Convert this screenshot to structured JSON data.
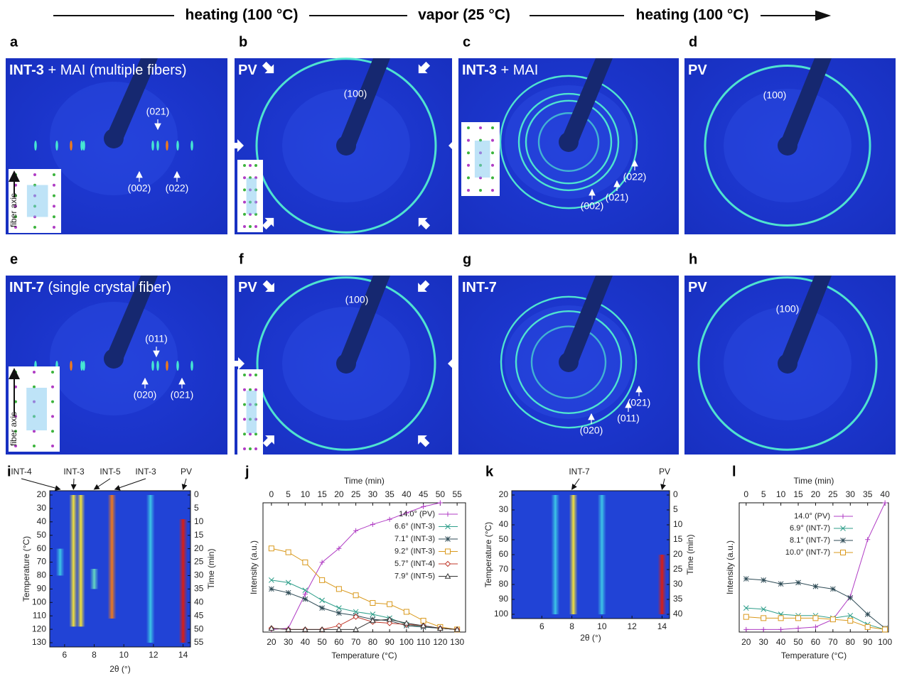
{
  "header": {
    "steps": [
      "heating (100 °C)",
      "vapor (25 °C)",
      "heating (100 °C)"
    ]
  },
  "panels": [
    {
      "letter": "a",
      "title": "INT-3",
      "subtitle": "+ MAI (multiple fibers)",
      "labels": [
        "(021)",
        "(002)",
        "(022)"
      ],
      "inset_label": "fiber axis"
    },
    {
      "letter": "b",
      "title": "PV",
      "labels": [
        "(100)"
      ]
    },
    {
      "letter": "c",
      "title": "INT-3",
      "subtitle": "+ MAI",
      "labels": [
        "(002)",
        "(021)",
        "(022)"
      ]
    },
    {
      "letter": "d",
      "title": "PV",
      "labels": [
        "(100)"
      ]
    },
    {
      "letter": "e",
      "title": "INT-7",
      "subtitle": "(single crystal fiber)",
      "labels": [
        "(011)",
        "(020)",
        "(021)"
      ],
      "inset_label": "fiber axis"
    },
    {
      "letter": "f",
      "title": "PV",
      "labels": [
        "(100)"
      ]
    },
    {
      "letter": "g",
      "title": "INT-7",
      "labels": [
        "(020)",
        "(011)",
        "(021)"
      ]
    },
    {
      "letter": "h",
      "title": "PV",
      "labels": [
        "(100)"
      ]
    }
  ],
  "chart_data": [
    {
      "type": "heatmap",
      "letter": "i",
      "xlabel": "2θ (°)",
      "ylabel": "Temperature (°C)",
      "y2label": "Time (min)",
      "peak_labels": [
        "INT-4",
        "INT-3",
        "INT-5",
        "INT-3",
        "PV"
      ],
      "xlim": [
        5,
        14.5
      ],
      "xticks": [
        6,
        8,
        10,
        12,
        14
      ],
      "ylim": [
        20,
        130
      ],
      "yticks": [
        20,
        30,
        40,
        50,
        60,
        70,
        80,
        90,
        100,
        110,
        120,
        130
      ],
      "y_inverted": true,
      "y2lim": [
        0,
        55
      ],
      "y2ticks": [
        0,
        5,
        10,
        15,
        20,
        25,
        30,
        35,
        40,
        45,
        50,
        55
      ],
      "background": "#2143d6",
      "bands": [
        {
          "center": 6.6,
          "from": 20,
          "to": 118,
          "color": "#f2e23a"
        },
        {
          "center": 7.1,
          "from": 20,
          "to": 118,
          "color": "#f2e23a"
        },
        {
          "center": 9.2,
          "from": 20,
          "to": 112,
          "color": "#f07a1c"
        },
        {
          "center": 11.8,
          "from": 20,
          "to": 130,
          "color": "#3cc6e6"
        },
        {
          "center": 14.0,
          "from": 38,
          "to": 130,
          "color": "#e01c0c"
        },
        {
          "center": 5.7,
          "from": 60,
          "to": 80,
          "color": "#3cc6e6"
        },
        {
          "center": 8.0,
          "from": 75,
          "to": 90,
          "color": "#66d8c0"
        }
      ]
    },
    {
      "type": "line",
      "letter": "j",
      "xlabel": "Temperature (°C)",
      "ylabel": "Intensity (a.u.)",
      "x2label": "Time (min)",
      "x": [
        20,
        30,
        40,
        50,
        60,
        70,
        80,
        90,
        100,
        110,
        120,
        130
      ],
      "xlim": [
        15,
        135
      ],
      "xticks": [
        20,
        30,
        40,
        50,
        60,
        70,
        80,
        90,
        100,
        110,
        120,
        130
      ],
      "x2lim": [
        -2.5,
        57.5
      ],
      "x2ticks": [
        0,
        5,
        10,
        15,
        20,
        25,
        30,
        35,
        40,
        45,
        50,
        55
      ],
      "ylim": [
        -2,
        100
      ],
      "series": [
        {
          "name": "14.0° (PV)",
          "color": "#b03cc4",
          "marker": "plus",
          "values": [
            0,
            1,
            28,
            53,
            64,
            78,
            83,
            87,
            92,
            97,
            100,
            null
          ]
        },
        {
          "name": "6.6° (INT-3)",
          "color": "#2e9e8a",
          "marker": "cross",
          "values": [
            39,
            37,
            31,
            23,
            17,
            14,
            12,
            9,
            4,
            2,
            1,
            0
          ]
        },
        {
          "name": "7.1° (INT-3)",
          "color": "#2d4a55",
          "marker": "star",
          "values": [
            32,
            29,
            24,
            17,
            13,
            11,
            8,
            7,
            3,
            2,
            1,
            0
          ]
        },
        {
          "name": "9.2° (INT-3)",
          "color": "#d9991c",
          "marker": "square",
          "values": [
            64,
            61,
            53,
            39,
            32,
            27,
            21,
            20,
            14,
            7,
            2,
            0
          ]
        },
        {
          "name": "5.7° (INT-4)",
          "color": "#c0392b",
          "marker": "diamond",
          "values": [
            1,
            0,
            0,
            0,
            3,
            10,
            6,
            5,
            4,
            3,
            1,
            0
          ]
        },
        {
          "name": "7.9° (INT-5)",
          "color": "#333333",
          "marker": "triangle",
          "values": [
            1,
            0,
            0,
            0,
            0,
            0,
            7,
            8,
            5,
            3,
            1,
            0
          ]
        }
      ]
    },
    {
      "type": "heatmap",
      "letter": "k",
      "xlabel": "2θ (°)",
      "ylabel": "Temperature (°C)",
      "y2label": "Time (min)",
      "peak_labels": [
        "INT-7",
        "PV"
      ],
      "xlim": [
        4,
        14.5
      ],
      "xticks": [
        6,
        8,
        10,
        12,
        14
      ],
      "ylim": [
        20,
        100
      ],
      "yticks": [
        20,
        30,
        40,
        50,
        60,
        70,
        80,
        90,
        100
      ],
      "y_inverted": true,
      "y2lim": [
        0,
        40
      ],
      "y2ticks": [
        0,
        5,
        10,
        15,
        20,
        25,
        30,
        35,
        40
      ],
      "background": "#2143d6",
      "bands": [
        {
          "center": 6.9,
          "from": 20,
          "to": 100,
          "color": "#3cc6e6"
        },
        {
          "center": 8.1,
          "from": 20,
          "to": 100,
          "color": "#f2e23a"
        },
        {
          "center": 10.0,
          "from": 20,
          "to": 100,
          "color": "#3cc6e6"
        },
        {
          "center": 14.0,
          "from": 60,
          "to": 100,
          "color": "#e01c0c"
        }
      ]
    },
    {
      "type": "line",
      "letter": "l",
      "xlabel": "Temperature (°C)",
      "ylabel": "Intensity (a.u.)",
      "x2label": "Time (min)",
      "x": [
        20,
        30,
        40,
        50,
        60,
        70,
        80,
        90,
        100
      ],
      "xlim": [
        16,
        102
      ],
      "xticks": [
        20,
        30,
        40,
        50,
        60,
        70,
        80,
        90,
        100
      ],
      "x2lim": [
        -2,
        41
      ],
      "x2ticks": [
        0,
        5,
        10,
        15,
        20,
        25,
        30,
        35,
        40
      ],
      "ylim": [
        -2,
        100
      ],
      "series": [
        {
          "name": "14.0° (PV)",
          "color": "#b03cc4",
          "marker": "plus",
          "values": [
            0,
            0,
            0,
            1,
            2,
            8,
            26,
            71,
            100
          ]
        },
        {
          "name": "6.9° (INT-7)",
          "color": "#2e9e8a",
          "marker": "cross",
          "values": [
            17,
            16,
            12,
            11,
            11,
            9,
            11,
            4,
            0
          ]
        },
        {
          "name": "8.1° (INT-7)",
          "color": "#2d4a55",
          "marker": "star",
          "values": [
            40,
            39,
            36,
            37,
            34,
            32,
            25,
            12,
            1
          ]
        },
        {
          "name": "10.0° (INT-7)",
          "color": "#d9991c",
          "marker": "square",
          "values": [
            10,
            9,
            9,
            9,
            9,
            8,
            7,
            2,
            0
          ]
        }
      ]
    }
  ]
}
